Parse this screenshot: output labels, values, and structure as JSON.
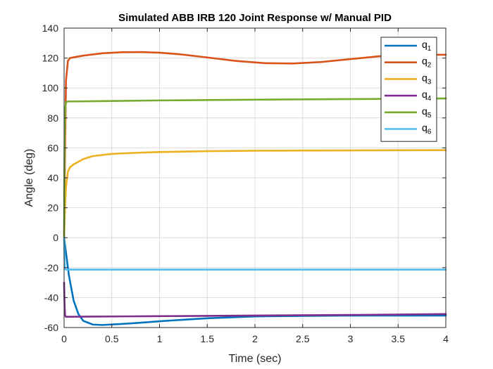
{
  "chart_data": {
    "type": "line",
    "title": "Simulated ABB IRB 120 Joint Response w/ Manual PID",
    "xlabel": "Time (sec)",
    "ylabel": "Angle (deg)",
    "xlim": [
      0,
      4
    ],
    "ylim": [
      -60,
      140
    ],
    "xticks": [
      0,
      0.5,
      1,
      1.5,
      2,
      2.5,
      3,
      3.5,
      4
    ],
    "xtick_labels": [
      "0",
      "0.5",
      "1",
      "1.5",
      "2",
      "2.5",
      "3",
      "3.5",
      "4"
    ],
    "yticks": [
      -60,
      -40,
      -20,
      0,
      20,
      40,
      60,
      80,
      100,
      120,
      140
    ],
    "ytick_labels": [
      "-60",
      "-40",
      "-20",
      "0",
      "20",
      "40",
      "60",
      "80",
      "100",
      "120",
      "140"
    ],
    "grid": true,
    "legend_position": "top-right",
    "series": [
      {
        "name": "q",
        "subscript": "1",
        "color": "#0072BD",
        "x": [
          0,
          0.02,
          0.05,
          0.1,
          0.15,
          0.2,
          0.3,
          0.4,
          0.6,
          0.8,
          1.0,
          1.5,
          2.0,
          2.5,
          3.0,
          3.5,
          4.0
        ],
        "y": [
          0,
          -10,
          -25,
          -42,
          -51,
          -55.5,
          -58,
          -58.3,
          -57.6,
          -56.8,
          -55.8,
          -53.8,
          -52.6,
          -52.2,
          -52.0,
          -52.0,
          -52.0
        ]
      },
      {
        "name": "q",
        "subscript": "2",
        "color": "#D95319",
        "x": [
          0,
          0.01,
          0.02,
          0.04,
          0.06,
          0.1,
          0.2,
          0.4,
          0.6,
          0.8,
          1.0,
          1.2,
          1.5,
          1.8,
          2.1,
          2.4,
          2.7,
          3.0,
          3.3,
          3.6,
          4.0
        ],
        "y": [
          0,
          60,
          105,
          118,
          120,
          120.5,
          121.6,
          123.2,
          123.9,
          124.0,
          123.6,
          122.6,
          120.4,
          118.1,
          116.6,
          116.4,
          117.4,
          119.3,
          121.2,
          122.3,
          122.2
        ]
      },
      {
        "name": "q",
        "subscript": "3",
        "color": "#EDB120",
        "x": [
          0,
          0.01,
          0.02,
          0.04,
          0.06,
          0.1,
          0.2,
          0.3,
          0.5,
          0.7,
          1.0,
          1.5,
          2.0,
          2.5,
          3.0,
          3.5,
          4.0
        ],
        "y": [
          0,
          20,
          34,
          44,
          47,
          49,
          52.5,
          54.5,
          56,
          56.6,
          57.2,
          57.8,
          58.1,
          58.2,
          58.3,
          58.4,
          58.5
        ]
      },
      {
        "name": "q",
        "subscript": "4",
        "color": "#7E2F8E",
        "x": [
          0,
          0.005,
          0.01,
          0.02,
          0.5,
          1.0,
          2.0,
          3.0,
          4.0
        ],
        "y": [
          -30,
          -45,
          -52,
          -52.8,
          -52.6,
          -52.4,
          -52.0,
          -51.6,
          -51.0
        ]
      },
      {
        "name": "q",
        "subscript": "5",
        "color": "#77AC30",
        "x": [
          0,
          0.005,
          0.01,
          0.02,
          0.04,
          0.5,
          1.0,
          2.0,
          3.0,
          4.0
        ],
        "y": [
          0,
          60,
          85,
          90.5,
          91,
          91.3,
          91.7,
          92.2,
          92.6,
          93.0
        ]
      },
      {
        "name": "q",
        "subscript": "6",
        "color": "#4DBEEE",
        "x": [
          0,
          0.005,
          0.01,
          0.02,
          1.0,
          2.0,
          3.0,
          4.0
        ],
        "y": [
          0,
          -15,
          -21,
          -21.3,
          -21.3,
          -21.3,
          -21.3,
          -21.3
        ]
      }
    ]
  }
}
